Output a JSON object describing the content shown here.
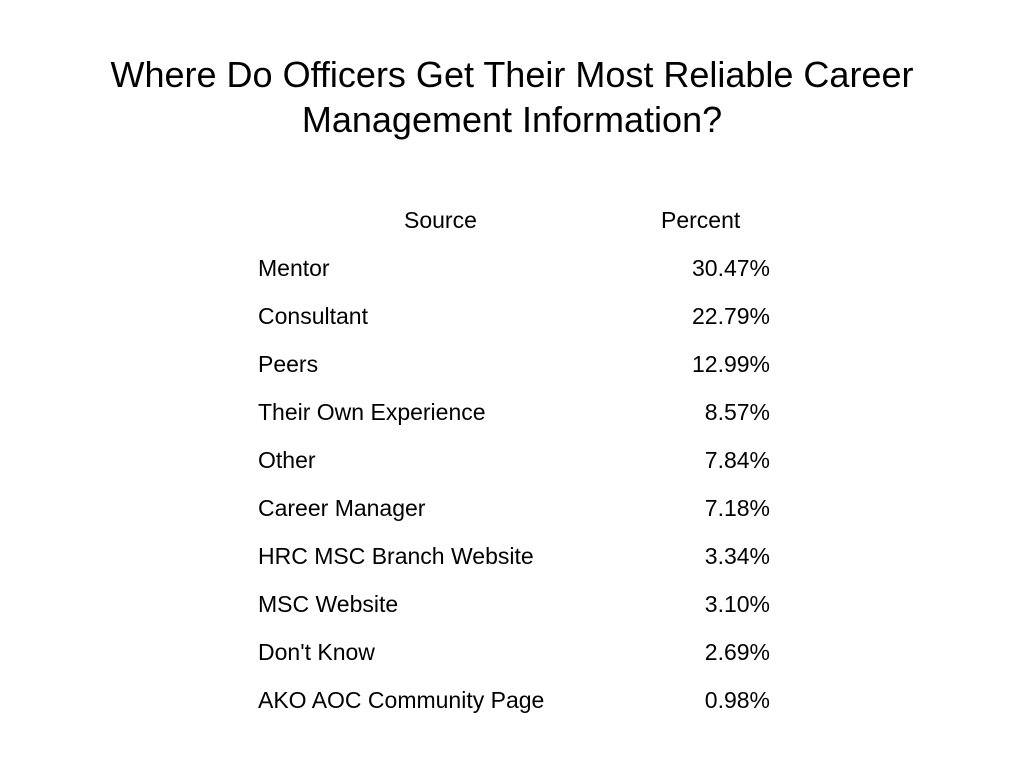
{
  "title": {
    "line1": "Where Do Officers Get Their Most Reliable Career",
    "line2": "Management Information?"
  },
  "table": {
    "headers": {
      "source": "Source",
      "percent": "Percent"
    },
    "rows": [
      {
        "source": "Mentor",
        "percent": "30.47%"
      },
      {
        "source": "Consultant",
        "percent": "22.79%"
      },
      {
        "source": "Peers",
        "percent": "12.99%"
      },
      {
        "source": "Their Own Experience",
        "percent": "8.57%"
      },
      {
        "source": "Other",
        "percent": "7.84%"
      },
      {
        "source": "Career Manager",
        "percent": "7.18%"
      },
      {
        "source": "HRC MSC Branch Website",
        "percent": "3.34%"
      },
      {
        "source": "MSC Website",
        "percent": "3.10%"
      },
      {
        "source": "Don't Know",
        "percent": "2.69%"
      },
      {
        "source": "AKO AOC Community Page",
        "percent": "0.98%"
      }
    ]
  }
}
